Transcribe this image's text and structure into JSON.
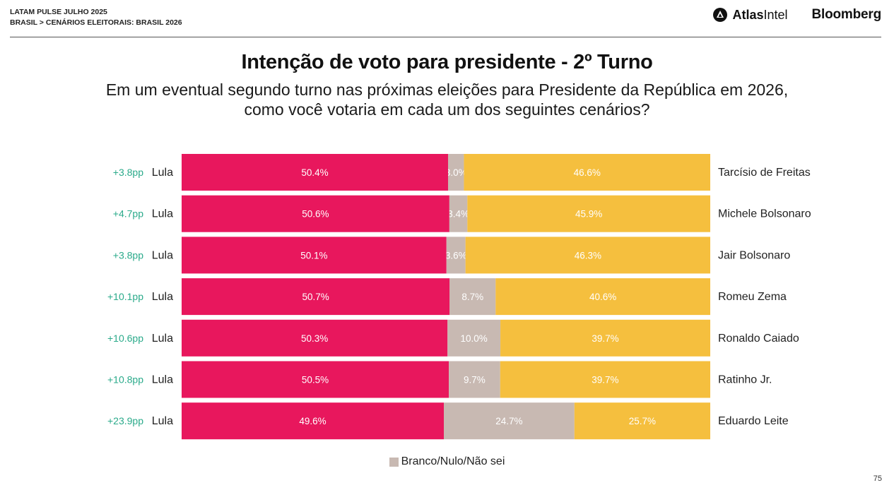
{
  "header": {
    "line1": "LATAM PULSE JULHO 2025",
    "line2": "BRASIL > CENÁRIOS ELEITORAIS: BRASIL 2026",
    "atlas_bold": "Atlas",
    "atlas_light": "Intel",
    "bloomberg": "Bloomberg"
  },
  "title": "Intenção de voto para presidente - 2º Turno",
  "subtitle_line1": "Em um eventual segundo turno nas próximas eleições para Presidente da República em 2026,",
  "subtitle_line2": "como você votaria em cada um dos seguintes cenários?",
  "legend": {
    "label": "Branco/Nulo/Não sei"
  },
  "page_number": "75",
  "colors": {
    "lula": "#e8175d",
    "undecided": "#c8b9b2",
    "opponent": "#f5bf3e",
    "diff": "#2aaa8a",
    "bar_label": "#ffffff"
  },
  "chart_data": {
    "type": "bar",
    "orientation": "horizontal-stacked-100",
    "left_candidate": "Lula",
    "categories": [
      "Tarcísio de Freitas",
      "Michele Bolsonaro",
      "Jair Bolsonaro",
      "Romeu Zema",
      "Ronaldo Caiado",
      "Ratinho Jr.",
      "Eduardo Leite"
    ],
    "differences": [
      "+3.8pp",
      "+4.7pp",
      "+3.8pp",
      "+10.1pp",
      "+10.6pp",
      "+10.8pp",
      "+23.9pp"
    ],
    "series": [
      {
        "name": "Lula",
        "values": [
          50.4,
          50.6,
          50.1,
          50.7,
          50.3,
          50.5,
          49.6
        ],
        "labels": [
          "50.4%",
          "50.6%",
          "50.1%",
          "50.7%",
          "50.3%",
          "50.5%",
          "49.6%"
        ]
      },
      {
        "name": "Branco/Nulo/Não sei",
        "values": [
          3.0,
          3.4,
          3.6,
          8.7,
          10.0,
          9.7,
          24.7
        ],
        "labels": [
          "3.0%",
          "3.4%",
          "3.6%",
          "8.7%",
          "10.0%",
          "9.7%",
          "24.7%"
        ]
      },
      {
        "name": "",
        "values": [
          46.6,
          45.9,
          46.3,
          40.6,
          39.7,
          39.7,
          25.7
        ],
        "labels": [
          "46.6%",
          "45.9%",
          "46.3%",
          "40.6%",
          "39.7%",
          "39.7%",
          "25.7%"
        ]
      }
    ],
    "xlim": [
      0,
      100
    ],
    "legend_position": "bottom"
  }
}
